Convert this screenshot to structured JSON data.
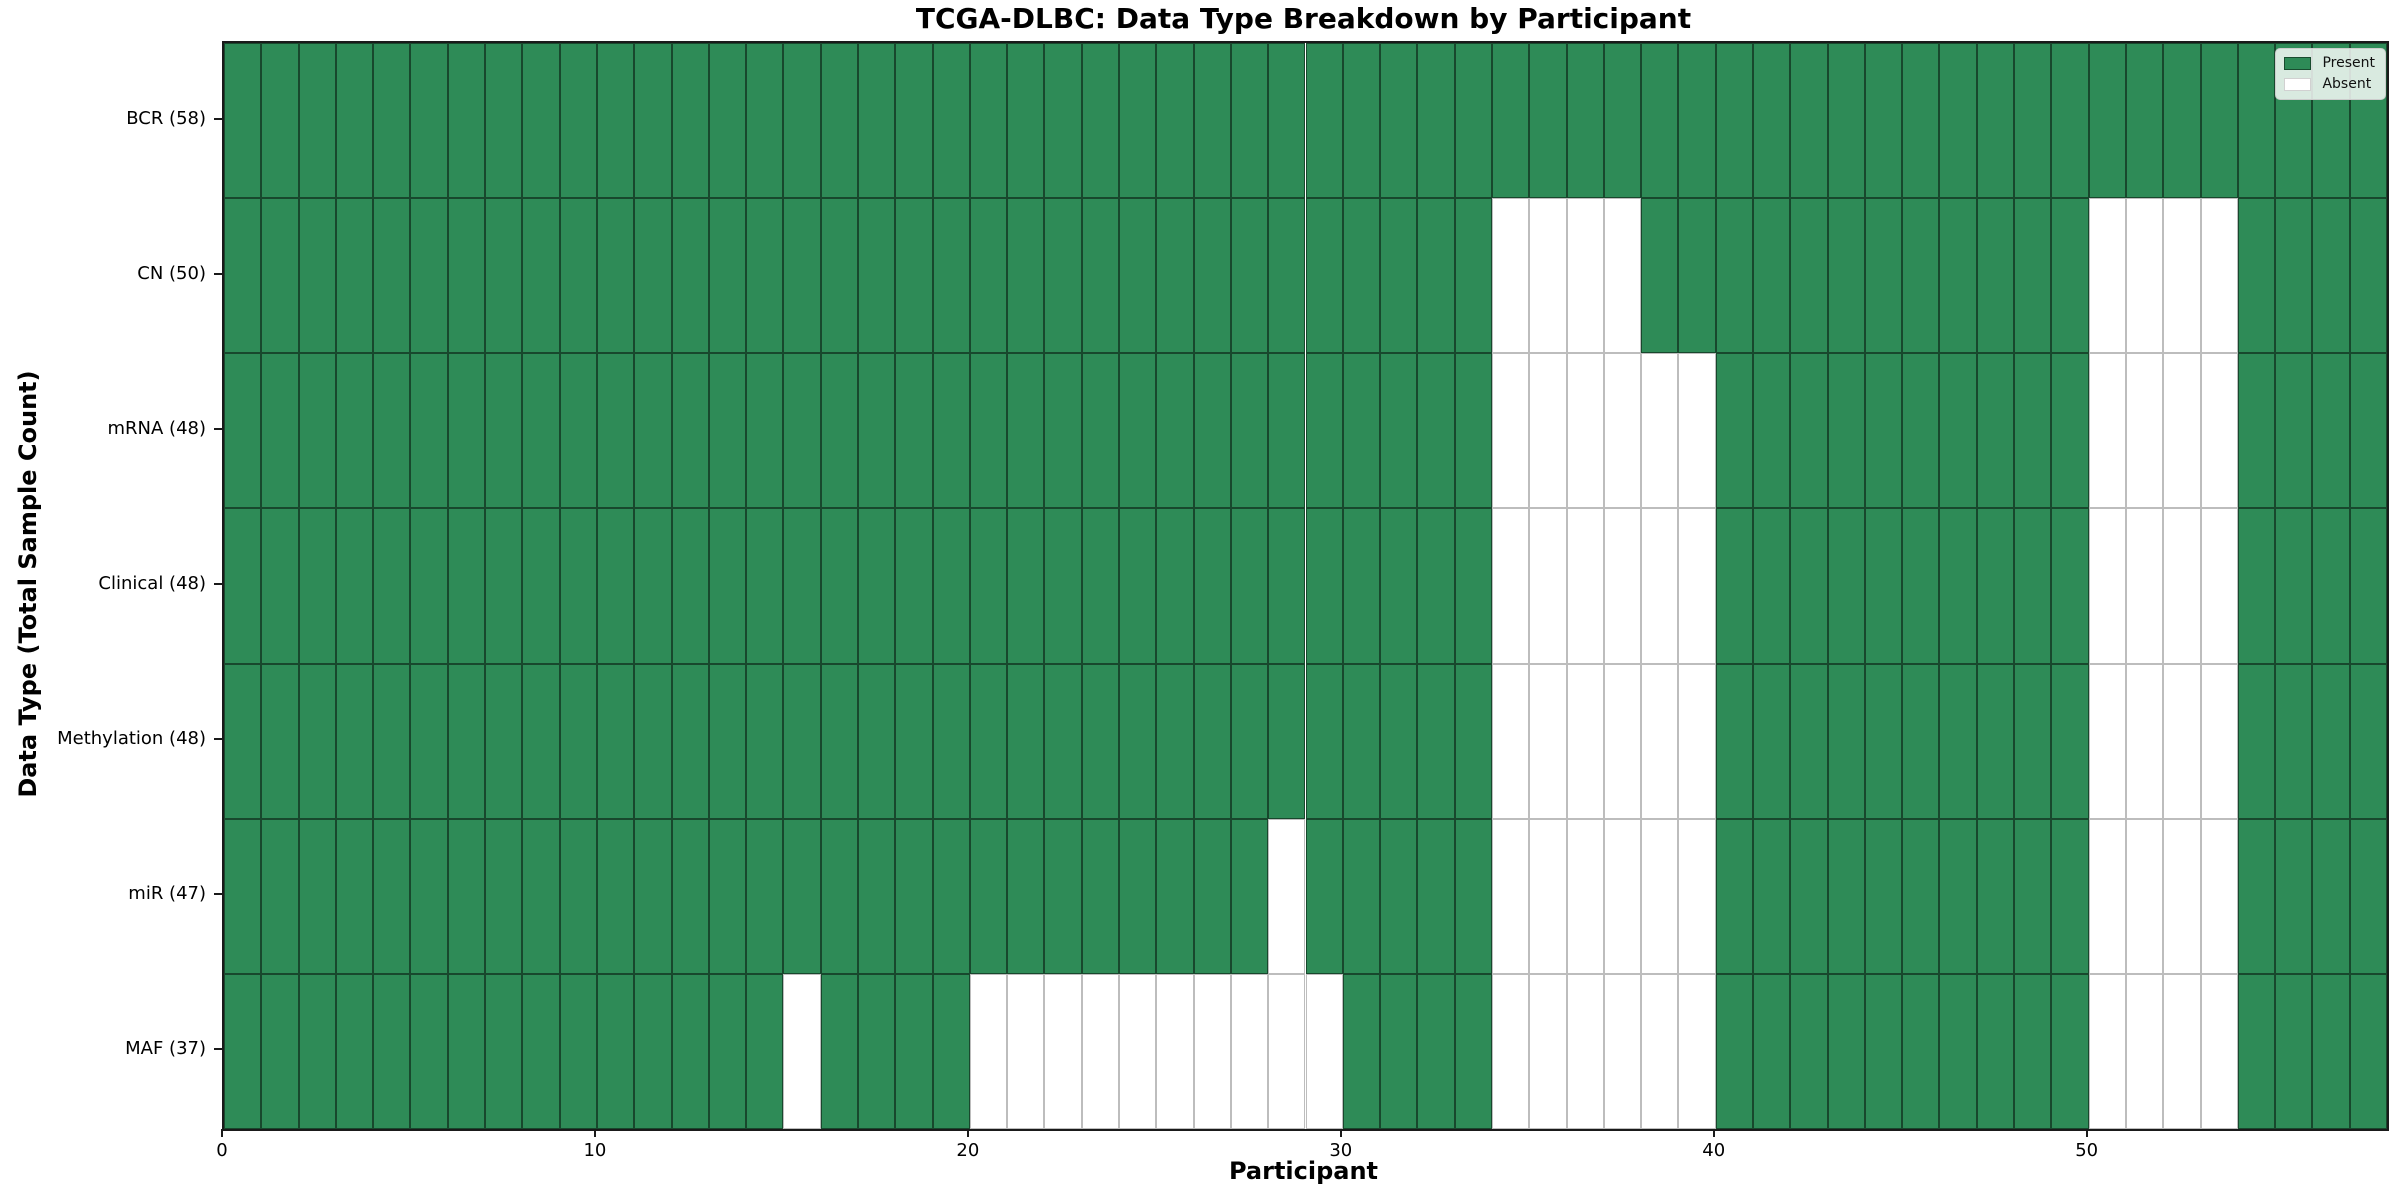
{
  "colors": {
    "present": "#2e8b57",
    "absent": "#ffffff",
    "spine": "#1a1a1a",
    "legend_border": "#cccccc"
  },
  "legend": {
    "present_label": "Present",
    "absent_label": "Absent"
  },
  "chart_data": {
    "type": "heatmap",
    "title": "TCGA-DLBC: Data Type Breakdown by Participant",
    "xlabel": "Participant",
    "ylabel": "Data Type (Total Sample Count)",
    "legend_position": "upper right",
    "grid": true,
    "n_participants": 58,
    "x_range": [
      0,
      58
    ],
    "x_ticks": [
      0,
      10,
      20,
      30,
      40,
      50
    ],
    "value_encoding": {
      "present": 1,
      "absent": 0
    },
    "rows": [
      {
        "name": "BCR",
        "label": "BCR (58)",
        "total": 58,
        "absent_participants": []
      },
      {
        "name": "CN",
        "label": "CN (50)",
        "total": 50,
        "absent_participants": [
          34,
          35,
          36,
          37,
          50,
          51,
          52,
          53
        ]
      },
      {
        "name": "mRNA",
        "label": "mRNA (48)",
        "total": 48,
        "absent_participants": [
          34,
          35,
          36,
          37,
          38,
          39,
          50,
          51,
          52,
          53
        ]
      },
      {
        "name": "Clinical",
        "label": "Clinical (48)",
        "total": 48,
        "absent_participants": [
          34,
          35,
          36,
          37,
          38,
          39,
          50,
          51,
          52,
          53
        ]
      },
      {
        "name": "Methylation",
        "label": "Methylation (48)",
        "total": 48,
        "absent_participants": [
          34,
          35,
          36,
          37,
          38,
          39,
          50,
          51,
          52,
          53
        ]
      },
      {
        "name": "miR",
        "label": "miR (47)",
        "total": 47,
        "absent_participants": [
          28,
          34,
          35,
          36,
          37,
          38,
          39,
          50,
          51,
          52,
          53
        ]
      },
      {
        "name": "MAF",
        "label": "MAF (37)",
        "total": 37,
        "absent_participants": [
          15,
          20,
          21,
          22,
          23,
          24,
          25,
          26,
          27,
          28,
          29,
          34,
          35,
          36,
          37,
          38,
          39,
          50,
          51,
          52,
          53
        ]
      }
    ]
  }
}
